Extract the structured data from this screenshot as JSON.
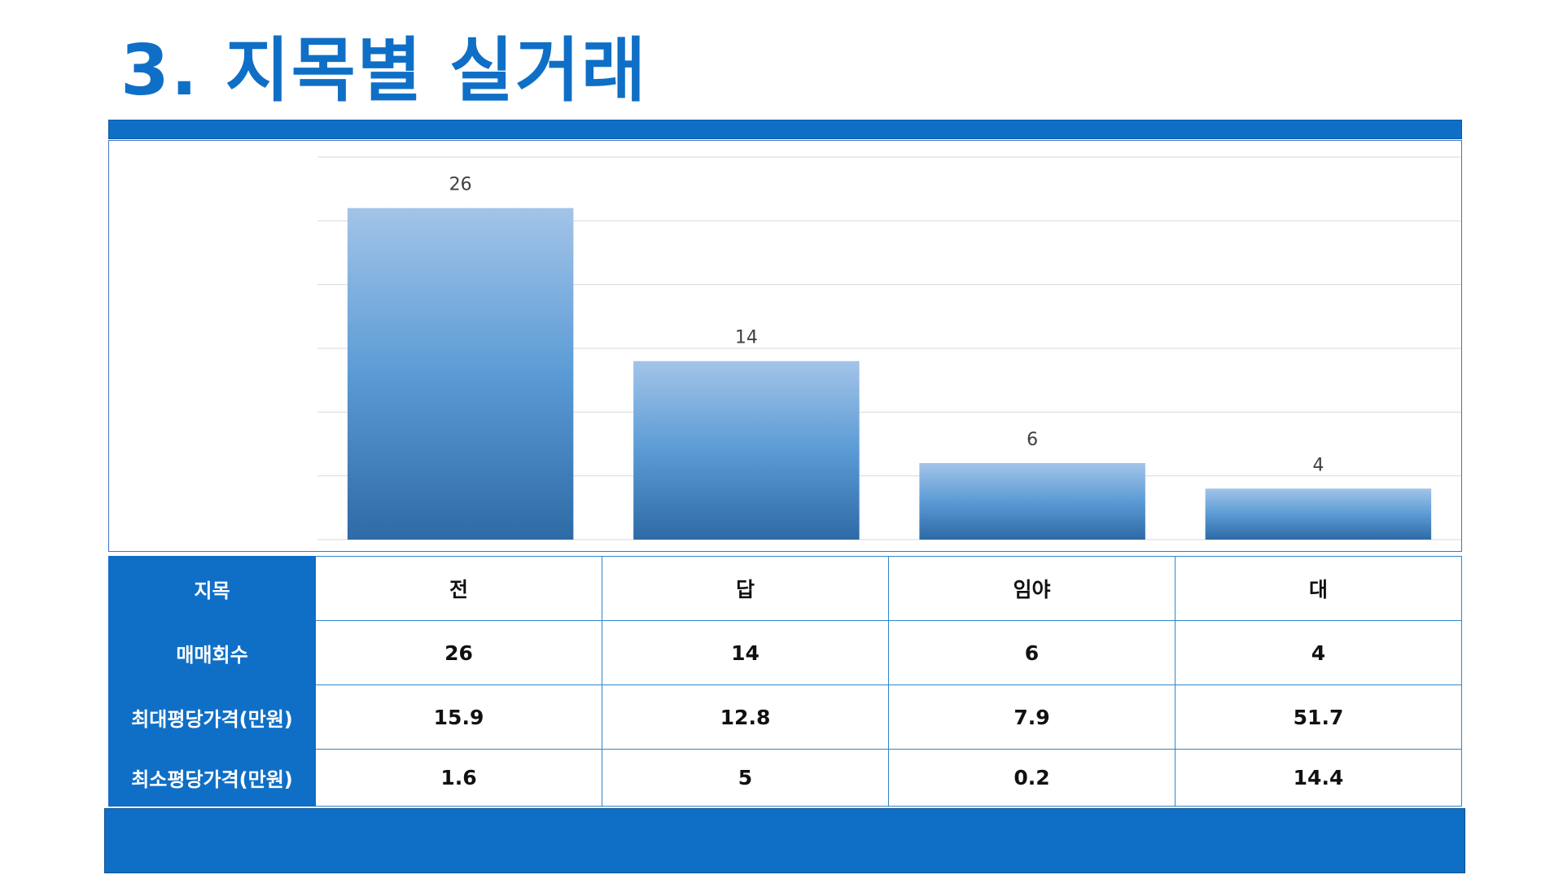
{
  "title": "3. 지목별 실거래",
  "colors": {
    "accent": "#0f6fc6",
    "bar_top": "#a3c4e8",
    "bar_mid": "#5b9bd5",
    "bar_bottom": "#2e6aa6",
    "gridline": "#d9d9d9"
  },
  "chart_data": {
    "type": "bar",
    "categories": [
      "전",
      "답",
      "임야",
      "대"
    ],
    "values": [
      26,
      14,
      6,
      4
    ],
    "ylim": [
      0,
      30
    ],
    "grid": true,
    "data_labels": true
  },
  "table": {
    "rows": [
      {
        "label": "지목",
        "cells": [
          "전",
          "답",
          "임야",
          "대"
        ]
      },
      {
        "label": "매매회수",
        "cells": [
          "26",
          "14",
          "6",
          "4"
        ]
      },
      {
        "label": "최대평당가격(만원)",
        "cells": [
          "15.9",
          "12.8",
          "7.9",
          "51.7"
        ]
      },
      {
        "label": "최소평당가격(만원)",
        "cells": [
          "1.6",
          "5",
          "0.2",
          "14.4"
        ]
      }
    ]
  }
}
